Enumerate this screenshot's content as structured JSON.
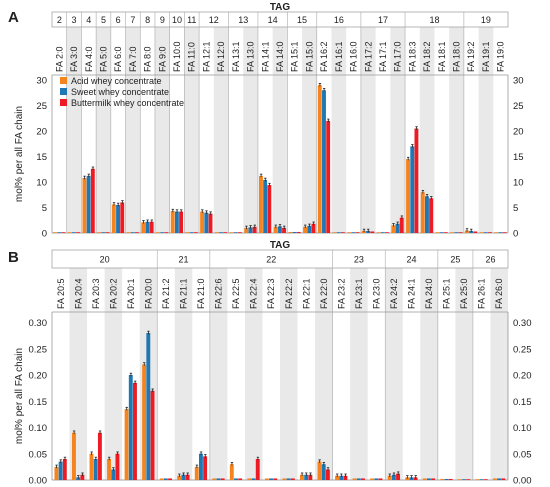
{
  "chart_data": [
    {
      "type": "bar",
      "panel": "A",
      "header": "TAG",
      "ylabel": "mol% per all FA chain",
      "ylim": [
        0,
        31
      ],
      "yticks": [
        0,
        5,
        10,
        15,
        20,
        25,
        30
      ],
      "grid": false,
      "legend_position": "top-left",
      "groups": [
        {
          "label": "2",
          "count": 1
        },
        {
          "label": "3",
          "count": 1
        },
        {
          "label": "4",
          "count": 1
        },
        {
          "label": "5",
          "count": 1
        },
        {
          "label": "6",
          "count": 1
        },
        {
          "label": "7",
          "count": 1
        },
        {
          "label": "8",
          "count": 1
        },
        {
          "label": "9",
          "count": 1
        },
        {
          "label": "10",
          "count": 1
        },
        {
          "label": "11",
          "count": 1
        },
        {
          "label": "12",
          "count": 2
        },
        {
          "label": "13",
          "count": 2
        },
        {
          "label": "14",
          "count": 2
        },
        {
          "label": "15",
          "count": 2
        },
        {
          "label": "16",
          "count": 3
        },
        {
          "label": "17",
          "count": 3
        },
        {
          "label": "18",
          "count": 4
        },
        {
          "label": "19",
          "count": 3
        }
      ],
      "categories": [
        "FA 2:0",
        "FA 3:0",
        "FA 4:0",
        "FA 5:0",
        "FA 6:0",
        "FA 7:0",
        "FA 8:0",
        "FA 9:0",
        "FA 10:0",
        "FA 11:0",
        "FA 12:1",
        "FA 12:0",
        "FA 13:1",
        "FA 13:0",
        "FA 14:1",
        "FA 14:0",
        "FA 15:1",
        "FA 15:0",
        "FA 16:2",
        "FA 16:1",
        "FA 16:0",
        "FA 17:2",
        "FA 17:1",
        "FA 17:0",
        "FA 18:3",
        "FA 18:2",
        "FA 18:1",
        "FA 18:0",
        "FA 19:2",
        "FA 19:1",
        "FA 19:0"
      ],
      "series": [
        {
          "name": "Acid whey concentrate",
          "color": "#f5841f",
          "values": [
            0.1,
            0.05,
            10.8,
            0.05,
            5.6,
            0.05,
            2.1,
            0.05,
            4.3,
            0.1,
            4.2,
            0.05,
            0.1,
            1.0,
            11.2,
            1.2,
            0.2,
            1.2,
            29.0,
            0.1,
            0.1,
            0.4,
            0.1,
            1.5,
            14.5,
            8.0,
            0.1,
            0.05,
            0.5,
            0.05,
            0.05
          ]
        },
        {
          "name": "Sweet whey concentrate",
          "color": "#1f78b4",
          "values": [
            0.1,
            0.05,
            11.2,
            0.05,
            5.5,
            0.05,
            2.2,
            0.05,
            4.2,
            0.1,
            4.0,
            0.05,
            0.1,
            1.1,
            10.4,
            1.3,
            0.2,
            1.4,
            28.0,
            0.1,
            0.1,
            0.4,
            0.1,
            1.8,
            17.0,
            7.2,
            0.1,
            0.05,
            0.4,
            0.05,
            0.05
          ]
        },
        {
          "name": "Buttermilk whey concentrate",
          "color": "#ed1c24",
          "values": [
            0.1,
            0.05,
            12.6,
            0.05,
            6.0,
            0.05,
            2.2,
            0.05,
            4.2,
            0.1,
            3.8,
            0.05,
            0.1,
            1.2,
            9.4,
            1.0,
            0.2,
            1.8,
            22.0,
            0.1,
            0.1,
            0.3,
            0.1,
            3.0,
            20.5,
            6.8,
            0.1,
            0.05,
            0.3,
            0.05,
            0.05
          ]
        }
      ]
    },
    {
      "type": "bar",
      "panel": "B",
      "header": "TAG",
      "ylabel": "mol% per all FA chain",
      "ylim": [
        0,
        0.32
      ],
      "yticks": [
        "0.00",
        "0.05",
        "0.10",
        "0.15",
        "0.20",
        "0.25",
        "0.30"
      ],
      "grid": false,
      "groups": [
        {
          "label": "20",
          "count": 6
        },
        {
          "label": "21",
          "count": 3
        },
        {
          "label": "22",
          "count": 7
        },
        {
          "label": "23",
          "count": 3
        },
        {
          "label": "24",
          "count": 3
        },
        {
          "label": "25",
          "count": 2
        },
        {
          "label": "26",
          "count": 2
        }
      ],
      "categories": [
        "FA 20:5",
        "FA 20:4",
        "FA 20:3",
        "FA 20:2",
        "FA 20:1",
        "FA 20:0",
        "FA 21:2",
        "FA 21:1",
        "FA 21:0",
        "FA 22:6",
        "FA 22:5",
        "FA 22:4",
        "FA 22:3",
        "FA 22:2",
        "FA 22:1",
        "FA 22:0",
        "FA 23:2",
        "FA 23:1",
        "FA 23:0",
        "FA 24:2",
        "FA 24:1",
        "FA 24:0",
        "FA 25:1",
        "FA 25:0",
        "FA 26:1",
        "FA 26:0"
      ],
      "series": [
        {
          "name": "Acid whey concentrate",
          "color": "#f5841f",
          "values": [
            0.025,
            0.09,
            0.05,
            0.04,
            0.135,
            0.22,
            0.003,
            0.008,
            0.025,
            0.003,
            0.03,
            0.003,
            0.003,
            0.003,
            0.01,
            0.035,
            0.008,
            0.003,
            0.003,
            0.008,
            0.005,
            0.003,
            0.002,
            0.001,
            0.001,
            0.003
          ]
        },
        {
          "name": "Sweet whey concentrate",
          "color": "#1f78b4",
          "values": [
            0.035,
            0.005,
            0.04,
            0.02,
            0.2,
            0.28,
            0.003,
            0.01,
            0.05,
            0.003,
            0.003,
            0.003,
            0.003,
            0.003,
            0.01,
            0.03,
            0.008,
            0.003,
            0.003,
            0.01,
            0.005,
            0.003,
            0.002,
            0.001,
            0.001,
            0.003
          ]
        },
        {
          "name": "Buttermilk whey concentrate",
          "color": "#ed1c24",
          "values": [
            0.04,
            0.01,
            0.09,
            0.05,
            0.185,
            0.17,
            0.003,
            0.01,
            0.045,
            0.003,
            0.003,
            0.04,
            0.003,
            0.003,
            0.01,
            0.02,
            0.008,
            0.003,
            0.003,
            0.012,
            0.005,
            0.003,
            0.002,
            0.001,
            0.001,
            0.003
          ]
        }
      ]
    }
  ]
}
